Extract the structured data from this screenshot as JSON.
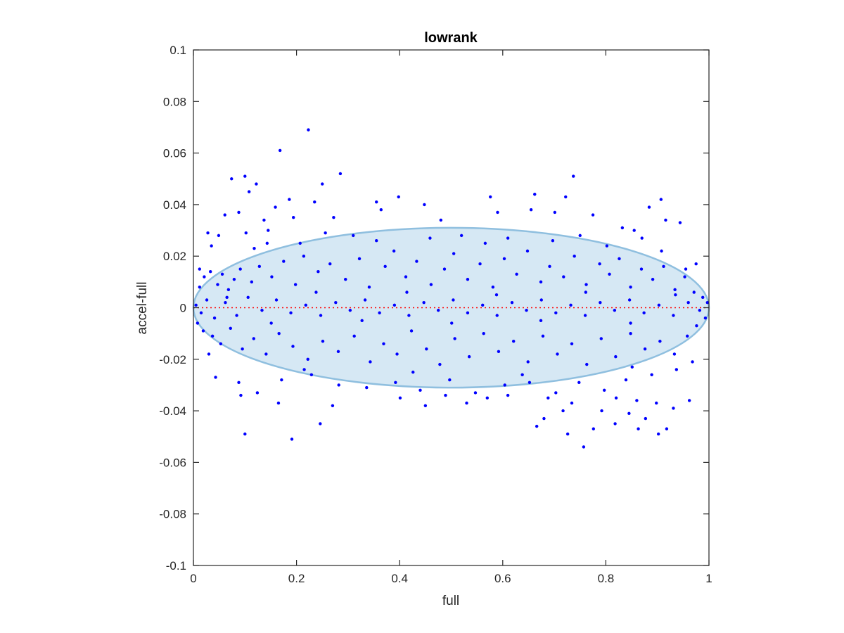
{
  "chart_data": {
    "type": "scatter",
    "title": "lowrank",
    "xlabel": "full",
    "ylabel": "accel-full",
    "xlim": [
      0,
      1
    ],
    "ylim": [
      -0.1,
      0.1
    ],
    "xticks": [
      0,
      0.2,
      0.4,
      0.6,
      0.8,
      1
    ],
    "xtick_labels": [
      "0",
      "0.2",
      "0.4",
      "0.6",
      "0.8",
      "1"
    ],
    "yticks": [
      -0.1,
      -0.08,
      -0.06,
      -0.04,
      -0.02,
      0,
      0.02,
      0.04,
      0.06,
      0.08,
      0.1
    ],
    "ytick_labels": [
      "-0.1",
      "-0.08",
      "-0.06",
      "-0.04",
      "-0.02",
      "0",
      "0.02",
      "0.04",
      "0.06",
      "0.08",
      "0.1"
    ],
    "grid": false,
    "colors": {
      "points": "#0000ff",
      "ellipse_fill": "#d6e8f4",
      "ellipse_edge": "#8fbfdf",
      "zero_line": "#ff0000",
      "axes": "#262626"
    },
    "reference_line": {
      "y": 0,
      "style": "dotted"
    },
    "ellipse": {
      "center": [
        0.5,
        0
      ],
      "x_radius": 0.5,
      "y_radius": 0.031
    },
    "points": [
      [
        0.223,
        0.069
      ],
      [
        0.168,
        0.061
      ],
      [
        0.285,
        0.052
      ],
      [
        0.1,
        0.051
      ],
      [
        0.074,
        0.05
      ],
      [
        0.737,
        0.051
      ],
      [
        0.122,
        0.048
      ],
      [
        0.25,
        0.048
      ],
      [
        0.108,
        0.045
      ],
      [
        0.662,
        0.044
      ],
      [
        0.576,
        0.043
      ],
      [
        0.722,
        0.043
      ],
      [
        0.398,
        0.043
      ],
      [
        0.186,
        0.042
      ],
      [
        0.907,
        0.042
      ],
      [
        0.235,
        0.041
      ],
      [
        0.355,
        0.041
      ],
      [
        0.448,
        0.04
      ],
      [
        0.159,
        0.039
      ],
      [
        0.364,
        0.038
      ],
      [
        0.884,
        0.039
      ],
      [
        0.655,
        0.038
      ],
      [
        0.59,
        0.037
      ],
      [
        0.701,
        0.037
      ],
      [
        0.088,
        0.037
      ],
      [
        0.061,
        0.036
      ],
      [
        0.775,
        0.036
      ],
      [
        0.194,
        0.035
      ],
      [
        0.272,
        0.035
      ],
      [
        0.916,
        0.034
      ],
      [
        0.944,
        0.033
      ],
      [
        0.48,
        0.034
      ],
      [
        0.137,
        0.034
      ],
      [
        0.855,
        0.03
      ],
      [
        0.832,
        0.031
      ],
      [
        0.028,
        0.029
      ],
      [
        0.049,
        0.028
      ],
      [
        0.102,
        0.029
      ],
      [
        0.145,
        0.03
      ],
      [
        0.256,
        0.029
      ],
      [
        0.31,
        0.028
      ],
      [
        0.52,
        0.028
      ],
      [
        0.61,
        0.027
      ],
      [
        0.75,
        0.028
      ],
      [
        0.87,
        0.027
      ],
      [
        0.035,
        0.024
      ],
      [
        0.118,
        0.023
      ],
      [
        0.207,
        0.025
      ],
      [
        0.012,
        0.015
      ],
      [
        0.021,
        0.012
      ],
      [
        0.033,
        0.014
      ],
      [
        0.047,
        0.009
      ],
      [
        0.056,
        0.013
      ],
      [
        0.068,
        0.007
      ],
      [
        0.079,
        0.011
      ],
      [
        0.091,
        0.015
      ],
      [
        0.113,
        0.01
      ],
      [
        0.128,
        0.016
      ],
      [
        0.152,
        0.012
      ],
      [
        0.175,
        0.018
      ],
      [
        0.198,
        0.009
      ],
      [
        0.214,
        0.02
      ],
      [
        0.242,
        0.014
      ],
      [
        0.265,
        0.017
      ],
      [
        0.295,
        0.011
      ],
      [
        0.322,
        0.019
      ],
      [
        0.341,
        0.008
      ],
      [
        0.372,
        0.016
      ],
      [
        0.389,
        0.022
      ],
      [
        0.412,
        0.012
      ],
      [
        0.433,
        0.018
      ],
      [
        0.461,
        0.009
      ],
      [
        0.487,
        0.015
      ],
      [
        0.505,
        0.021
      ],
      [
        0.532,
        0.011
      ],
      [
        0.556,
        0.017
      ],
      [
        0.581,
        0.008
      ],
      [
        0.603,
        0.019
      ],
      [
        0.627,
        0.013
      ],
      [
        0.648,
        0.022
      ],
      [
        0.674,
        0.01
      ],
      [
        0.691,
        0.016
      ],
      [
        0.718,
        0.012
      ],
      [
        0.739,
        0.02
      ],
      [
        0.762,
        0.009
      ],
      [
        0.788,
        0.017
      ],
      [
        0.807,
        0.013
      ],
      [
        0.826,
        0.019
      ],
      [
        0.848,
        0.008
      ],
      [
        0.869,
        0.015
      ],
      [
        0.891,
        0.011
      ],
      [
        0.912,
        0.016
      ],
      [
        0.934,
        0.007
      ],
      [
        0.953,
        0.012
      ],
      [
        0.971,
        0.006
      ],
      [
        0.988,
        0.004
      ],
      [
        0.005,
        0.001
      ],
      [
        0.015,
        -0.002
      ],
      [
        0.026,
        0.003
      ],
      [
        0.041,
        -0.004
      ],
      [
        0.062,
        0.002
      ],
      [
        0.084,
        -0.003
      ],
      [
        0.106,
        0.004
      ],
      [
        0.133,
        -0.001
      ],
      [
        0.161,
        0.003
      ],
      [
        0.189,
        -0.002
      ],
      [
        0.218,
        0.001
      ],
      [
        0.247,
        -0.003
      ],
      [
        0.276,
        0.002
      ],
      [
        0.304,
        -0.001
      ],
      [
        0.333,
        0.003
      ],
      [
        0.361,
        -0.002
      ],
      [
        0.39,
        0.001
      ],
      [
        0.418,
        -0.003
      ],
      [
        0.447,
        0.002
      ],
      [
        0.475,
        -0.001
      ],
      [
        0.504,
        0.003
      ],
      [
        0.532,
        -0.002
      ],
      [
        0.561,
        0.001
      ],
      [
        0.589,
        -0.003
      ],
      [
        0.618,
        0.002
      ],
      [
        0.646,
        -0.001
      ],
      [
        0.675,
        0.003
      ],
      [
        0.703,
        -0.002
      ],
      [
        0.732,
        0.001
      ],
      [
        0.76,
        -0.003
      ],
      [
        0.789,
        0.002
      ],
      [
        0.817,
        -0.001
      ],
      [
        0.846,
        0.003
      ],
      [
        0.874,
        -0.002
      ],
      [
        0.903,
        0.001
      ],
      [
        0.931,
        -0.003
      ],
      [
        0.96,
        0.002
      ],
      [
        0.982,
        -0.001
      ],
      [
        0.997,
        0.002
      ],
      [
        0.008,
        -0.006
      ],
      [
        0.019,
        -0.009
      ],
      [
        0.037,
        -0.011
      ],
      [
        0.053,
        -0.014
      ],
      [
        0.072,
        -0.008
      ],
      [
        0.095,
        -0.016
      ],
      [
        0.117,
        -0.012
      ],
      [
        0.141,
        -0.018
      ],
      [
        0.166,
        -0.01
      ],
      [
        0.193,
        -0.015
      ],
      [
        0.222,
        -0.02
      ],
      [
        0.251,
        -0.013
      ],
      [
        0.281,
        -0.017
      ],
      [
        0.312,
        -0.011
      ],
      [
        0.343,
        -0.021
      ],
      [
        0.369,
        -0.014
      ],
      [
        0.395,
        -0.018
      ],
      [
        0.423,
        -0.009
      ],
      [
        0.452,
        -0.016
      ],
      [
        0.478,
        -0.022
      ],
      [
        0.507,
        -0.012
      ],
      [
        0.535,
        -0.019
      ],
      [
        0.563,
        -0.01
      ],
      [
        0.592,
        -0.017
      ],
      [
        0.621,
        -0.013
      ],
      [
        0.649,
        -0.021
      ],
      [
        0.678,
        -0.011
      ],
      [
        0.706,
        -0.018
      ],
      [
        0.734,
        -0.014
      ],
      [
        0.763,
        -0.022
      ],
      [
        0.791,
        -0.012
      ],
      [
        0.819,
        -0.019
      ],
      [
        0.848,
        -0.01
      ],
      [
        0.876,
        -0.016
      ],
      [
        0.905,
        -0.013
      ],
      [
        0.933,
        -0.018
      ],
      [
        0.958,
        -0.011
      ],
      [
        0.976,
        -0.007
      ],
      [
        0.993,
        -0.004
      ],
      [
        0.043,
        -0.027
      ],
      [
        0.088,
        -0.029
      ],
      [
        0.124,
        -0.033
      ],
      [
        0.171,
        -0.028
      ],
      [
        0.229,
        -0.026
      ],
      [
        0.282,
        -0.03
      ],
      [
        0.336,
        -0.031
      ],
      [
        0.392,
        -0.029
      ],
      [
        0.44,
        -0.032
      ],
      [
        0.497,
        -0.028
      ],
      [
        0.547,
        -0.033
      ],
      [
        0.604,
        -0.03
      ],
      [
        0.652,
        -0.029
      ],
      [
        0.703,
        -0.033
      ],
      [
        0.748,
        -0.029
      ],
      [
        0.797,
        -0.032
      ],
      [
        0.839,
        -0.028
      ],
      [
        0.889,
        -0.026
      ],
      [
        0.937,
        -0.024
      ],
      [
        0.968,
        -0.021
      ],
      [
        0.092,
        -0.034
      ],
      [
        0.246,
        -0.045
      ],
      [
        0.191,
        -0.051
      ],
      [
        0.1,
        -0.049
      ],
      [
        0.165,
        -0.037
      ],
      [
        0.27,
        -0.038
      ],
      [
        0.401,
        -0.035
      ],
      [
        0.45,
        -0.038
      ],
      [
        0.53,
        -0.037
      ],
      [
        0.57,
        -0.035
      ],
      [
        0.666,
        -0.046
      ],
      [
        0.68,
        -0.043
      ],
      [
        0.717,
        -0.04
      ],
      [
        0.726,
        -0.049
      ],
      [
        0.757,
        -0.054
      ],
      [
        0.776,
        -0.047
      ],
      [
        0.792,
        -0.04
      ],
      [
        0.818,
        -0.045
      ],
      [
        0.845,
        -0.041
      ],
      [
        0.86,
        -0.036
      ],
      [
        0.877,
        -0.043
      ],
      [
        0.902,
        -0.049
      ],
      [
        0.918,
        -0.047
      ],
      [
        0.931,
        -0.039
      ],
      [
        0.898,
        -0.037
      ],
      [
        0.962,
        -0.036
      ],
      [
        0.734,
        -0.037
      ],
      [
        0.688,
        -0.035
      ],
      [
        0.82,
        -0.035
      ],
      [
        0.863,
        -0.047
      ],
      [
        0.61,
        -0.034
      ],
      [
        0.489,
        -0.034
      ],
      [
        0.065,
        0.004
      ],
      [
        0.151,
        -0.006
      ],
      [
        0.238,
        0.006
      ],
      [
        0.327,
        -0.005
      ],
      [
        0.414,
        0.006
      ],
      [
        0.501,
        -0.006
      ],
      [
        0.588,
        0.005
      ],
      [
        0.674,
        -0.005
      ],
      [
        0.761,
        0.006
      ],
      [
        0.848,
        -0.006
      ],
      [
        0.935,
        0.005
      ],
      [
        0.143,
        0.025
      ],
      [
        0.355,
        0.026
      ],
      [
        0.459,
        0.027
      ],
      [
        0.566,
        0.025
      ],
      [
        0.697,
        0.026
      ],
      [
        0.802,
        0.024
      ],
      [
        0.908,
        0.022
      ],
      [
        0.215,
        -0.024
      ],
      [
        0.426,
        -0.025
      ],
      [
        0.638,
        -0.026
      ],
      [
        0.851,
        -0.023
      ],
      [
        0.955,
        0.015
      ],
      [
        0.975,
        0.017
      ],
      [
        0.03,
        -0.018
      ],
      [
        0.012,
        0.008
      ]
    ]
  }
}
